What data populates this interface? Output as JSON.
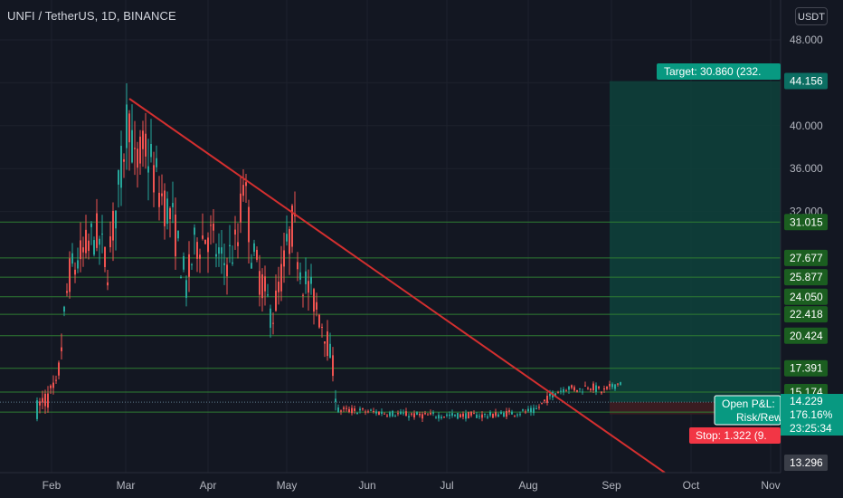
{
  "header": {
    "symbol_line": "UNFI / TetherUS, 1D, BINANCE",
    "currency_button": "USDT"
  },
  "colors": {
    "background": "#131722",
    "up": "#26a69a",
    "down": "#ef5350",
    "trendline": "#d32f2f",
    "support_lines": "#2e7d32",
    "level_label_bg": "#1b5e20",
    "target_zone": "#0e3f3a",
    "stop_zone": "#3a1c21",
    "target_label": "#089981",
    "stop_label": "#f23645"
  },
  "chart_data": {
    "type": "candlestick",
    "symbol": "UNFI / TetherUS",
    "interval": "1D",
    "exchange": "BINANCE",
    "y_axis_ticks": [
      "48.000",
      "44.000",
      "40.000",
      "36.000",
      "32.000"
    ],
    "x_axis_ticks": [
      "Feb",
      "Mar",
      "Apr",
      "May",
      "Jun",
      "Jul",
      "Aug",
      "Sep",
      "Oct",
      "Nov"
    ],
    "horizontal_levels": [
      "31.015",
      "27.677",
      "25.877",
      "24.050",
      "22.418",
      "20.424",
      "17.391",
      "15.174",
      "14.229",
      "13.305"
    ],
    "target_price_label": "44.156",
    "bottom_price_label": "13.296",
    "current_price": "14.229",
    "countdown": "23:25:34",
    "position": {
      "target_text": "Target: 30.860 (232.",
      "stop_text": "Stop: 1.322 (9.",
      "open_pnl_text": "Open P&L:",
      "open_pnl_pct": "176.16%",
      "risk_reward_text": "Risk/Rew"
    }
  }
}
